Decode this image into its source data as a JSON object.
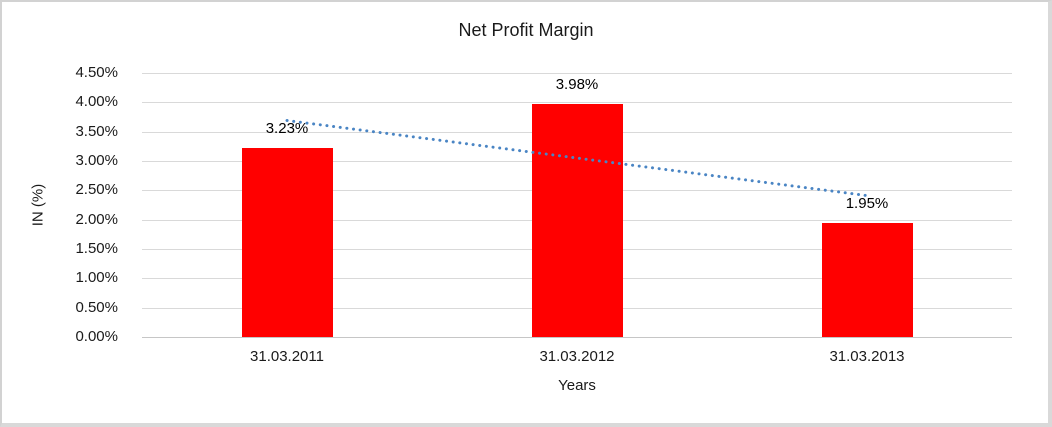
{
  "chart_data": {
    "type": "bar",
    "title": "Net Profit Margin",
    "xlabel": "Years",
    "ylabel": "IN (%)",
    "categories": [
      "31.03.2011",
      "31.03.2012",
      "31.03.2013"
    ],
    "values": [
      3.23,
      3.98,
      1.95
    ],
    "data_labels": [
      "3.23%",
      "3.98%",
      "1.95%"
    ],
    "ylim": [
      0,
      4.5
    ],
    "ytick_step": 0.5,
    "ytick_labels": [
      "0.00%",
      "0.50%",
      "1.00%",
      "1.50%",
      "2.00%",
      "2.50%",
      "3.00%",
      "3.50%",
      "4.00%",
      "4.50%"
    ],
    "grid": true,
    "legend": "none",
    "bar_color": "#FF0000",
    "gridline_color": "#D9D9D9",
    "trendline": {
      "type": "linear",
      "style": "dotted",
      "color": "#4A85C4",
      "endpoints_value": [
        3.69,
        2.41
      ]
    }
  }
}
